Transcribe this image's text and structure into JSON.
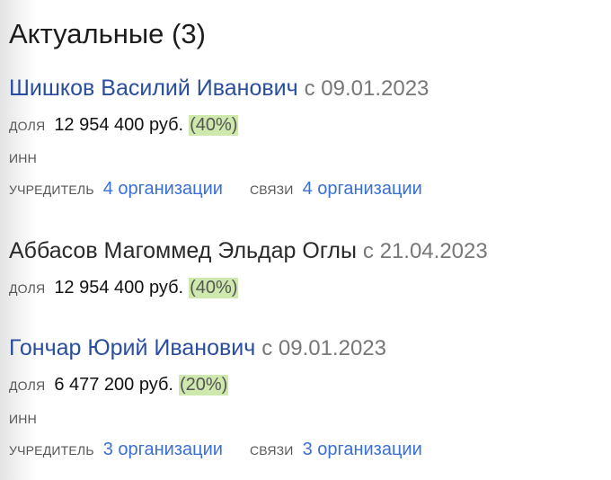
{
  "title": "Актуальные (3)",
  "persons": [
    {
      "name": "Шишков Василий Иванович",
      "since": "с 09.01.2023",
      "share_label": "доля",
      "share_amount": "12 954 400 руб.",
      "share_percent": "(40%)",
      "inn_label": "ИНН",
      "founder_label": "учредитель",
      "founder_link": "4 организации",
      "links_label": "связи",
      "links_link": "4 организации"
    },
    {
      "name": "Аббасов Магоммед Эльдар Оглы",
      "since": "с 21.04.2023",
      "share_label": "доля",
      "share_amount": "12 954 400 руб.",
      "share_percent": "(40%)"
    },
    {
      "name": "Гончар Юрий Иванович",
      "since": "с 09.01.2023",
      "share_label": "доля",
      "share_amount": "6 477 200 руб.",
      "share_percent": "(20%)",
      "inn_label": "ИНН",
      "founder_label": "учредитель",
      "founder_link": "3 организации",
      "links_label": "связи",
      "links_link": "3 организации"
    }
  ],
  "colors": {
    "name_link": "#2a4e9f",
    "link": "#3a6fd6",
    "percent_highlight": "#cfe8ae"
  }
}
